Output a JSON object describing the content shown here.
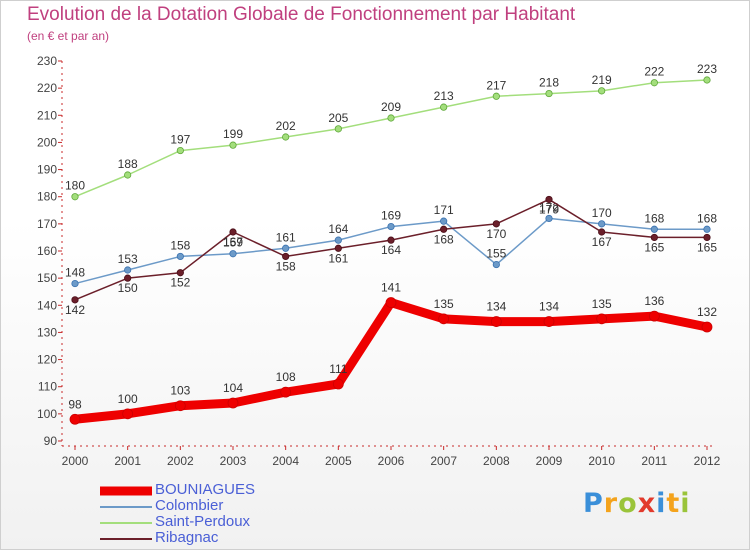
{
  "chart_data": {
    "type": "line",
    "title": "Evolution de la Dotation Globale de Fonctionnement par Habitant",
    "subtitle": "(en € et par an)",
    "xlabel": "",
    "ylabel": "",
    "categories": [
      "2000",
      "2001",
      "2002",
      "2003",
      "2004",
      "2005",
      "2006",
      "2007",
      "2008",
      "2009",
      "2010",
      "2011",
      "2012"
    ],
    "ylim": [
      90,
      230
    ],
    "yticks": [
      90,
      100,
      110,
      120,
      130,
      140,
      150,
      160,
      170,
      180,
      190,
      200,
      210,
      220,
      230
    ],
    "grid": false,
    "legend_position": "bottom-left",
    "series": [
      {
        "name": "BOUNIAGUES",
        "color": "#ee0000",
        "values": [
          98,
          100,
          103,
          104,
          108,
          111,
          141,
          135,
          134,
          134,
          135,
          136,
          132
        ]
      },
      {
        "name": "Colombier",
        "color": "#6c9ac8",
        "values": [
          148,
          153,
          158,
          159,
          161,
          164,
          169,
          171,
          155,
          172,
          170,
          168,
          168
        ]
      },
      {
        "name": "Saint-Perdoux",
        "color": "#a3de7c",
        "values": [
          180,
          188,
          197,
          199,
          202,
          205,
          209,
          213,
          217,
          218,
          219,
          222,
          223
        ]
      },
      {
        "name": "Ribagnac",
        "color": "#6b1f2a",
        "values": [
          142,
          150,
          152,
          167,
          158,
          161,
          164,
          168,
          170,
          179,
          167,
          165,
          165
        ]
      }
    ]
  },
  "logo": {
    "letters": [
      "P",
      "r",
      "o",
      "x",
      "i",
      "t",
      "i"
    ],
    "colors": [
      "#3a8fd9",
      "#f4a31c",
      "#9ac43a",
      "#e23a2c",
      "#3a8fd9",
      "#f4a31c",
      "#9ac43a"
    ]
  }
}
